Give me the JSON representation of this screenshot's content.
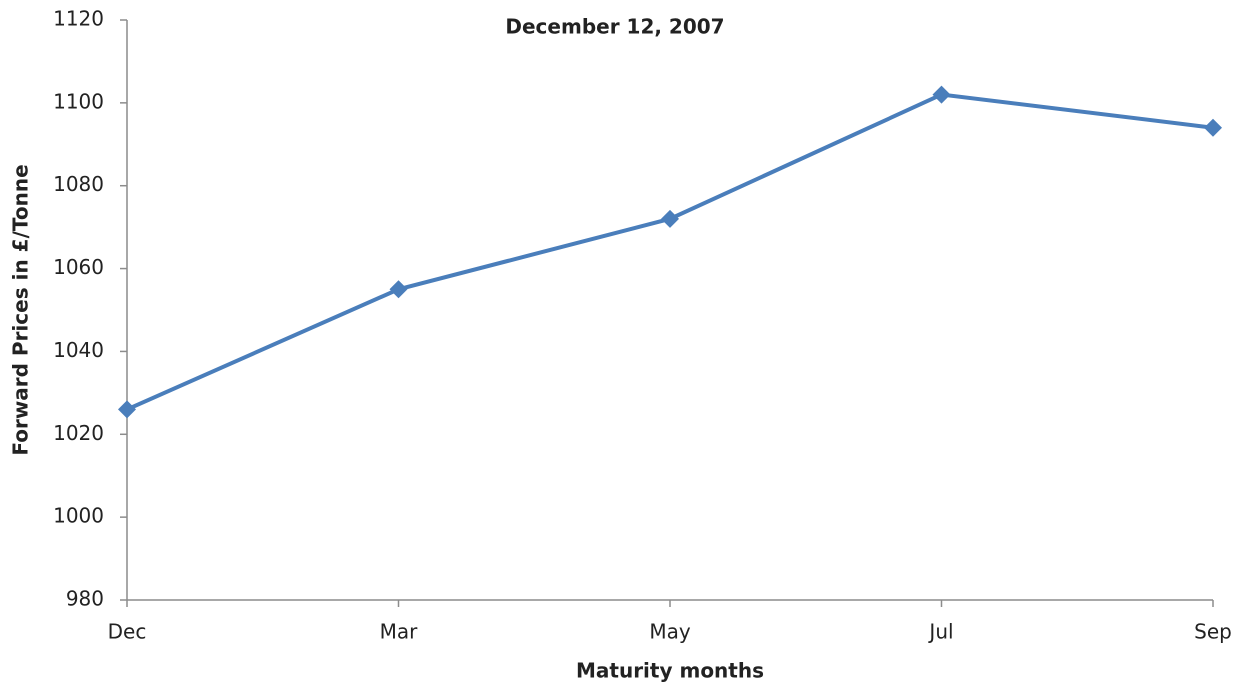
{
  "chart_data": {
    "type": "line",
    "title": "December 12, 2007",
    "x_label": "Maturity months",
    "y_label": "Forward Prices in £/Tonne",
    "categories": [
      "Dec",
      "Mar",
      "May",
      "Jul",
      "Sep"
    ],
    "series": [
      {
        "name": "Forward Prices",
        "color": "#4a7ebb",
        "values": [
          1026,
          1055,
          1072,
          1102,
          1094
        ]
      }
    ],
    "ylim": [
      980,
      1120
    ],
    "yticks": [
      980,
      1000,
      1020,
      1040,
      1060,
      1080,
      1100,
      1120
    ],
    "grid": false,
    "legend": false
  }
}
